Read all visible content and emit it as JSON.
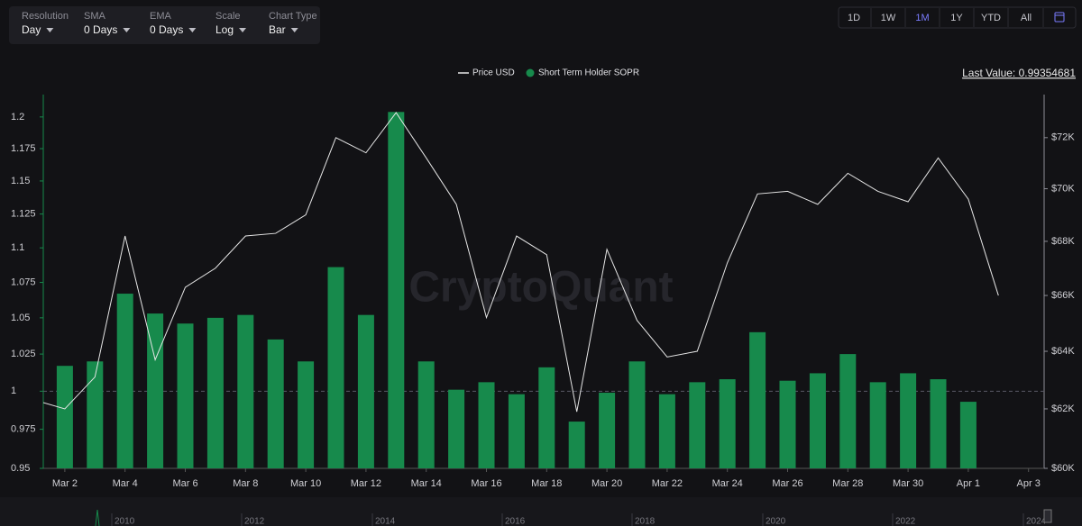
{
  "toolbar": [
    {
      "label": "Resolution",
      "value": "Day"
    },
    {
      "label": "SMA",
      "value": "0 Days"
    },
    {
      "label": "EMA",
      "value": "0 Days"
    },
    {
      "label": "Scale",
      "value": "Log"
    },
    {
      "label": "Chart Type",
      "value": "Bar"
    }
  ],
  "range_buttons": [
    "1D",
    "1W",
    "1M",
    "1Y",
    "YTD",
    "All"
  ],
  "active_range": "1M",
  "last_value_label": "Last Value: 0.99354681",
  "watermark": "CryptoQuant",
  "chart_data": {
    "type": "bar",
    "categories": [
      null,
      "Mar 2",
      null,
      "Mar 4",
      null,
      "Mar 6",
      null,
      "Mar 8",
      null,
      "Mar 10",
      null,
      "Mar 12",
      null,
      "Mar 14",
      null,
      "Mar 16",
      null,
      "Mar 18",
      null,
      "Mar 20",
      null,
      "Mar 22",
      null,
      "Mar 24",
      null,
      "Mar 26",
      null,
      "Mar 28",
      null,
      "Mar 30",
      null,
      "Apr 1",
      null,
      "Apr 3"
    ],
    "series": [
      {
        "name": "Price USD",
        "type": "line",
        "axis": "y2",
        "color": "#e6e6e6",
        "values": [
          62300,
          62000,
          63100,
          68200,
          63700,
          66300,
          67000,
          68200,
          68300,
          69000,
          72000,
          71400,
          73000,
          71200,
          69400,
          65200,
          68200,
          67500,
          61900,
          67700,
          65100,
          63800,
          64000,
          67200,
          69800,
          69900,
          69400,
          70600,
          69900,
          69500,
          71200,
          69600,
          66000,
          null
        ]
      },
      {
        "name": "Short Term Holder SOPR",
        "type": "bar",
        "color": "#178a4c",
        "values": [
          null,
          1.017,
          1.02,
          1.067,
          1.053,
          1.046,
          1.05,
          1.052,
          1.035,
          1.02,
          1.086,
          1.052,
          1.204,
          1.02,
          1.001,
          1.006,
          0.998,
          1.016,
          0.98,
          0.999,
          1.02,
          0.998,
          1.006,
          1.008,
          1.04,
          1.007,
          1.012,
          1.025,
          1.006,
          1.012,
          1.008,
          0.993,
          null,
          null
        ]
      }
    ],
    "ylim": [
      0.95,
      1.218
    ],
    "yscale": "log",
    "yticks": [
      0.95,
      0.975,
      1,
      1.025,
      1.05,
      1.075,
      1.1,
      1.125,
      1.15,
      1.175,
      1.2
    ],
    "y2lim": [
      60000,
      73730
    ],
    "y2scale": "log",
    "y2ticks": [
      {
        "value": 60000,
        "label": "$60K"
      },
      {
        "value": 62000,
        "label": "$62K"
      },
      {
        "value": 64000,
        "label": "$64K"
      },
      {
        "value": 66000,
        "label": "$66K"
      },
      {
        "value": 68000,
        "label": "$68K"
      },
      {
        "value": 70000,
        "label": "$70K"
      },
      {
        "value": 72000,
        "label": "$72K"
      }
    ],
    "reference_line": 1,
    "legend": "top"
  },
  "navigator": {
    "years": [
      "2010",
      "2012",
      "2014",
      "2016",
      "2018",
      "2020",
      "2022",
      "2024"
    ]
  }
}
